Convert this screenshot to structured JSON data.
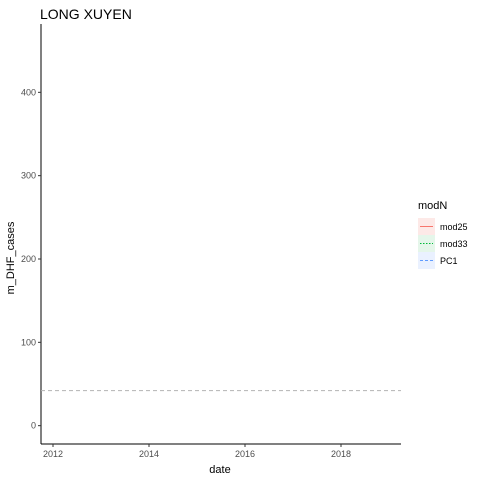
{
  "chart_data": {
    "type": "line",
    "title": "LONG XUYEN",
    "xlabel": "date",
    "ylabel": "m_DHF_cases",
    "xlim": [
      2011.75,
      2019.25
    ],
    "ylim": [
      -22,
      482
    ],
    "x_ticks": [
      2012,
      2014,
      2016,
      2018
    ],
    "y_ticks": [
      0,
      100,
      200,
      300,
      400
    ],
    "x_tick_labels": [
      "2012",
      "2014",
      "2016",
      "2018"
    ],
    "y_tick_labels": [
      "0",
      "100",
      "200",
      "300",
      "400"
    ],
    "grid": false,
    "legend_placement": "right",
    "reference_line": {
      "y": 42,
      "style": "dashed",
      "color": "#b3b3b3"
    },
    "series": [],
    "legend": {
      "title": "modN",
      "entries": [
        {
          "label": "mod25",
          "color": "#F8766D",
          "linetype": "solid",
          "fill": "#fde9e7"
        },
        {
          "label": "mod33",
          "color": "#00BA38",
          "linetype": "dotted",
          "fill": "#e5f6ea"
        },
        {
          "label": "PC1",
          "color": "#619CFF",
          "linetype": "dashed",
          "fill": "#eaf1ff"
        }
      ]
    }
  }
}
